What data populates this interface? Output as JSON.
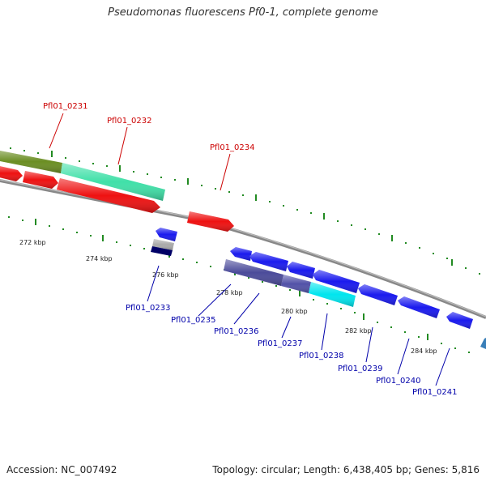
{
  "title": "Pseudomonas fluorescens Pf0-1, complete genome",
  "accession": "Accession: NC_007492",
  "summary": "Topology: circular; Length: 6,438,405 bp; Genes: 5,816",
  "colors": {
    "forward_label": "#cc0000",
    "reverse_label": "#0000aa",
    "backbone": "#888888",
    "tick": "#228b22"
  },
  "tick_labels": [
    "272 kbp",
    "274 kbp",
    "276 kbp",
    "278 kbp",
    "280 kbp",
    "282 kbp",
    "284 kbp"
  ],
  "forward_labels": [
    "Pfl01_0231",
    "Pfl01_0232",
    "Pfl01_0234"
  ],
  "reverse_labels": [
    "Pfl01_0233",
    "Pfl01_0235",
    "Pfl01_0236",
    "Pfl01_0237",
    "Pfl01_0238",
    "Pfl01_0239",
    "Pfl01_0240",
    "Pfl01_0241"
  ]
}
